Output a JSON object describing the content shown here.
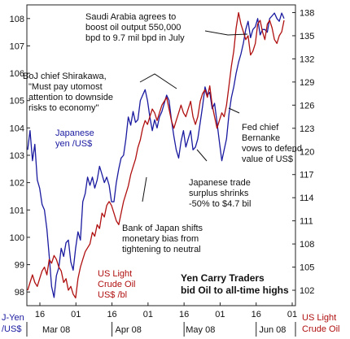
{
  "chart_data": {
    "type": "line",
    "title": "Yen Carry Traders bid Oil to all-time highs",
    "title_lines": [
      "Yen Carry Traders",
      "bid Oil to all-time highs"
    ],
    "left_axis_label": [
      "J-Yen",
      "/US$"
    ],
    "right_axis_label": [
      "US Light",
      "Crude Oil"
    ],
    "left_ylim": [
      97.5,
      108.5
    ],
    "right_ylim": [
      100,
      139
    ],
    "left_ticks": [
      98,
      99,
      100,
      101,
      102,
      103,
      104,
      105,
      106,
      107,
      108
    ],
    "right_ticks": [
      102,
      105,
      108,
      111,
      114,
      117,
      120,
      123,
      126,
      129,
      132,
      135,
      138
    ],
    "x_tick_labels": [
      "16",
      "01",
      "16",
      "01",
      "16",
      "01",
      "16",
      "01"
    ],
    "month_labels": [
      "Mar 08",
      "Apr 08",
      "May 08",
      "Jun 08"
    ],
    "series": [
      {
        "name": "Japanese yen /US$",
        "name_lines": [
          "Japanese",
          "yen /US$"
        ],
        "color": "#1a1aa0",
        "axis": "left",
        "values": [
          103.2,
          103.9,
          102.8,
          103.4,
          102.1,
          101.8,
          101.2,
          101.0,
          100.3,
          99.3,
          98.2,
          97.8,
          98.6,
          98.9,
          99.6,
          99.3,
          99.8,
          99.9,
          99.1,
          98.8,
          99.6,
          100.2,
          99.9,
          101.3,
          101.6,
          102.2,
          101.9,
          102.2,
          101.8,
          102.1,
          102.6,
          102.3,
          102.0,
          102.2,
          101.9,
          101.3,
          101.3,
          102.0,
          102.5,
          102.9,
          103.0,
          103.6,
          104.4,
          104.1,
          104.6,
          104.2,
          104.3,
          105.0,
          105.2,
          105.4,
          105.0,
          104.4,
          103.9,
          104.3,
          104.0,
          104.4,
          104.6,
          104.9,
          105.2,
          105.0,
          104.3,
          103.7,
          103.2,
          102.9,
          103.5,
          103.9,
          103.3,
          103.6,
          103.9,
          103.2,
          103.3,
          103.6,
          104.2,
          104.8,
          105.5,
          105.2,
          105.3,
          104.7,
          104.9,
          104.2,
          103.5,
          102.8,
          103.2,
          103.6,
          104.5,
          105.1,
          105.5,
          106.0,
          106.4,
          106.7,
          107.1,
          107.6,
          107.9,
          107.3,
          107.6,
          107.7,
          108.0,
          107.4,
          107.6,
          107.6,
          107.5,
          108.0,
          108.1,
          108.2,
          108.0,
          107.9,
          108.2,
          108.0
        ]
      },
      {
        "name": "US Light Crude Oil US$ /bl",
        "name_lines": [
          "US Light",
          "Crude Oil",
          "US$ /bl"
        ],
        "color": "#b01010",
        "axis": "right",
        "values": [
          102,
          103,
          104,
          103,
          102.5,
          103.5,
          104.5,
          105,
          104,
          106,
          105.5,
          106.5,
          106,
          105,
          104.5,
          103,
          103.5,
          102,
          102.5,
          101.5,
          101,
          103.5,
          105,
          106,
          107,
          107.5,
          108,
          109.5,
          109,
          110.5,
          110,
          112,
          111.5,
          113,
          113.5,
          113,
          112,
          111,
          110.5,
          112,
          113.5,
          114.5,
          115.5,
          117,
          118,
          119,
          120.5,
          121.5,
          123,
          124,
          123.5,
          124.5,
          125.5,
          125,
          124,
          125,
          126,
          126.5,
          127,
          125.5,
          124,
          123,
          124,
          125,
          126,
          125,
          124.5,
          125.5,
          126.5,
          124.5,
          123.5,
          124.5,
          126.5,
          127.5,
          128,
          127,
          128.5,
          126,
          124.5,
          123,
          124,
          125,
          124.5,
          126,
          128.5,
          131,
          133,
          136,
          138,
          136.5,
          135.5,
          134.5,
          135,
          132.5,
          133,
          134,
          136.5,
          137,
          135.5,
          134.5,
          136.5,
          137,
          136,
          134.5,
          134,
          135,
          135.5,
          137
        ]
      }
    ],
    "annotations": [
      [
        "Saudi Arabia agrees to",
        "boost oil output 550,000",
        "bpd to 9.7 mil bpd in July"
      ],
      [
        "BoJ chief Shirakawa,",
        "\"Must pay utomost",
        "attention to downside",
        "risks to economy\""
      ],
      [
        "Fed chief",
        "Bernanke",
        "vows to defend",
        "value of US$"
      ],
      [
        "Japanese trade",
        "surplus shrinks",
        "-50% to $4.7 bil"
      ],
      [
        "Bank of Japan shifts",
        "monetary bias from",
        "tightening to neutral"
      ]
    ]
  }
}
